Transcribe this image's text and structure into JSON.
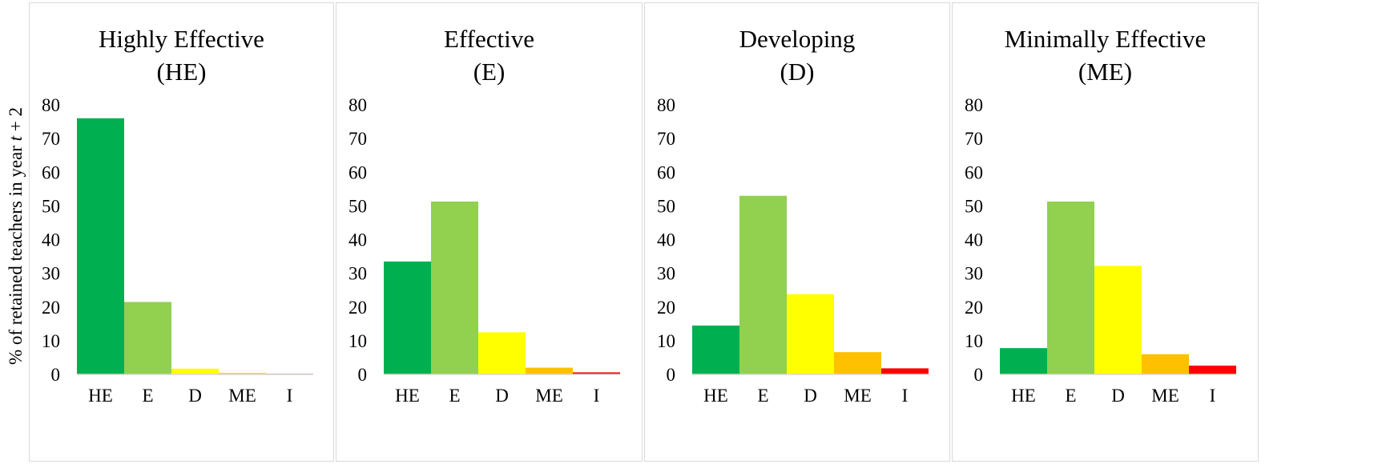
{
  "y_axis_label": {
    "prefix": "% of retained teachers in year ",
    "var": "t",
    "suffix": " + 2"
  },
  "colors": {
    "HE": "#00b050",
    "E": "#92d050",
    "D": "#ffff00",
    "ME": "#ffc000",
    "I": "#ff0000"
  },
  "chart_data": [
    {
      "type": "bar",
      "title": [
        "Highly Effective",
        "(HE)"
      ],
      "categories": [
        "HE",
        "E",
        "D",
        "ME",
        "I"
      ],
      "values": [
        76,
        21.5,
        1.7,
        0.4,
        0.2
      ],
      "yticks": [
        0,
        10,
        20,
        30,
        40,
        50,
        60,
        70,
        80
      ],
      "ylim": [
        0,
        80
      ],
      "grid": false
    },
    {
      "type": "bar",
      "title": [
        "Effective",
        "(E)"
      ],
      "categories": [
        "HE",
        "E",
        "D",
        "ME",
        "I"
      ],
      "values": [
        33.5,
        51.3,
        12.5,
        2.0,
        0.6
      ],
      "yticks": [
        0,
        10,
        20,
        30,
        40,
        50,
        60,
        70,
        80
      ],
      "ylim": [
        0,
        80
      ],
      "grid": false
    },
    {
      "type": "bar",
      "title": [
        "Developing",
        "(D)"
      ],
      "categories": [
        "HE",
        "E",
        "D",
        "ME",
        "I"
      ],
      "values": [
        14.5,
        53,
        23.8,
        6.6,
        1.8
      ],
      "yticks": [
        0,
        10,
        20,
        30,
        40,
        50,
        60,
        70,
        80
      ],
      "ylim": [
        0,
        80
      ],
      "grid": false
    },
    {
      "type": "bar",
      "title": [
        "Minimally Effective",
        "(ME)"
      ],
      "categories": [
        "HE",
        "E",
        "D",
        "ME",
        "I"
      ],
      "values": [
        7.8,
        51.3,
        32.2,
        6.0,
        2.6
      ],
      "yticks": [
        0,
        10,
        20,
        30,
        40,
        50,
        60,
        70,
        80
      ],
      "ylim": [
        0,
        80
      ],
      "grid": false
    }
  ]
}
